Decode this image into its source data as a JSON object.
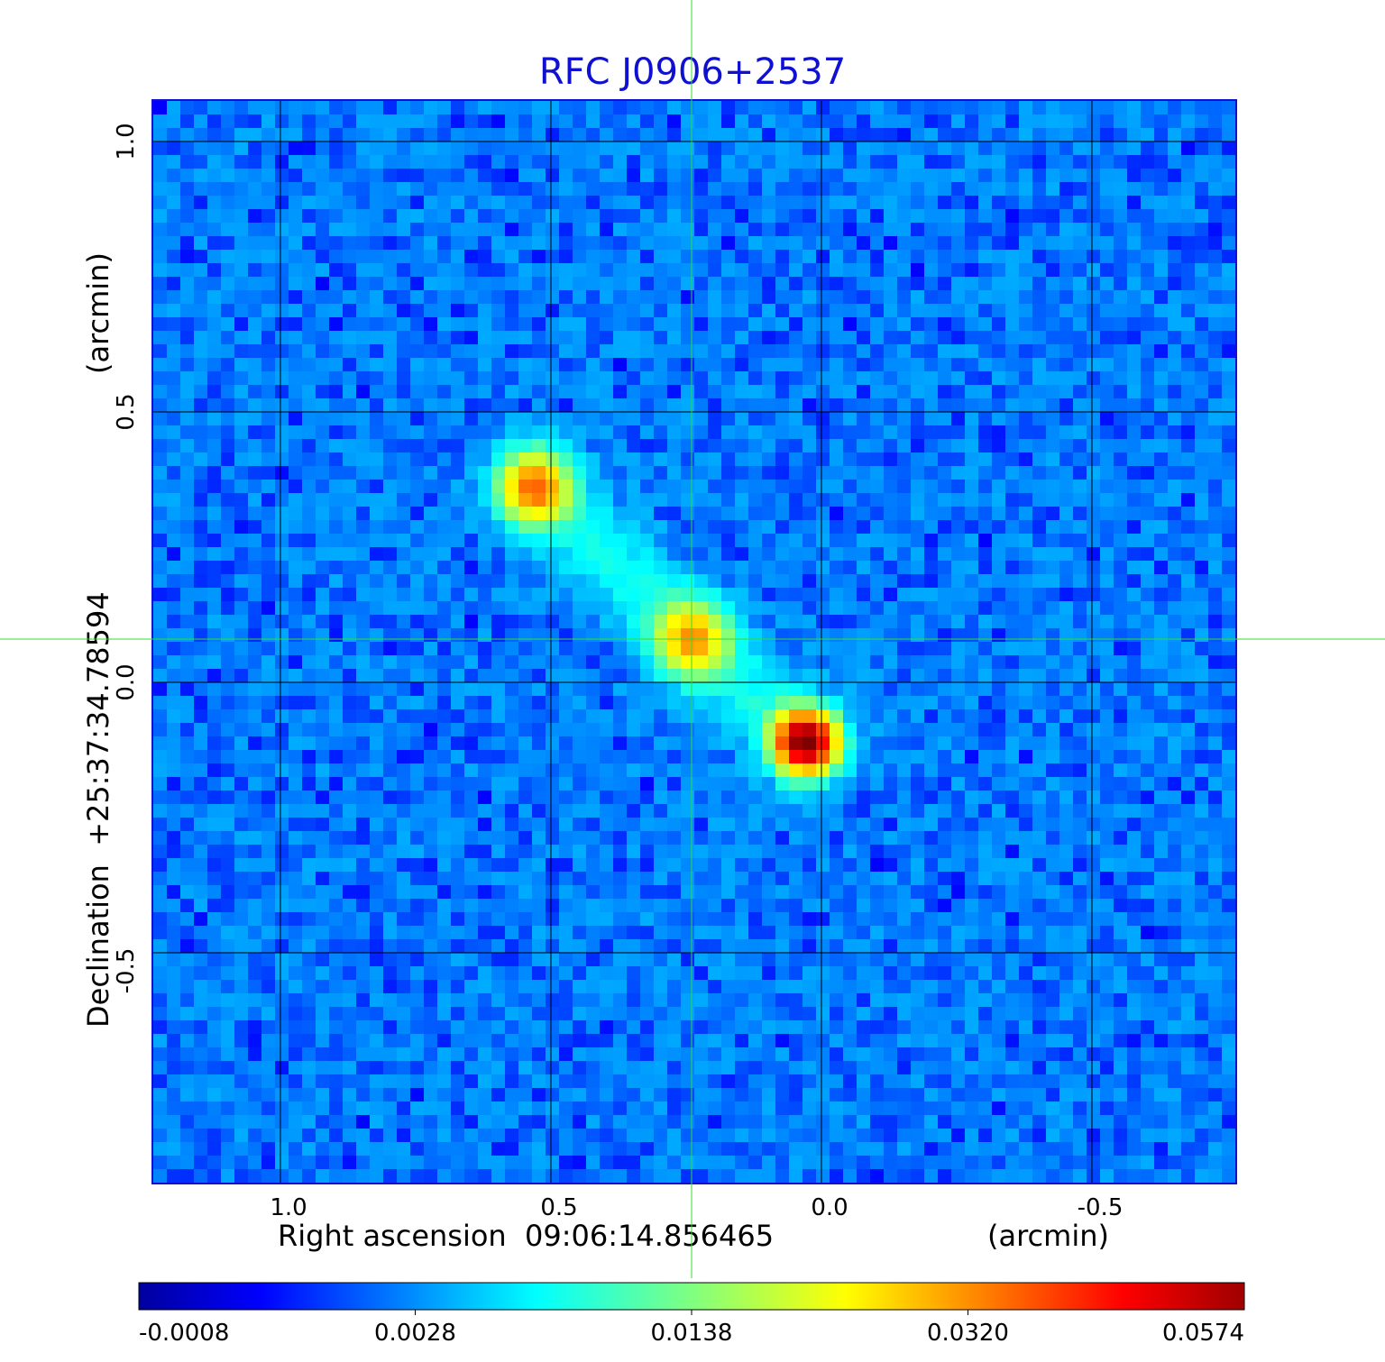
{
  "chart_data": {
    "type": "heatmap",
    "title": "RFC J0906+2537",
    "xlabel": "Right ascension  09:06:14.856465",
    "xlabel_unit": "(arcmin)",
    "ylabel": "Declination  +25:37:34.78594",
    "ylabel_unit": "(arcmin)",
    "x_axis": {
      "reversed": true,
      "range": [
        1.235,
        -0.765
      ],
      "ticks": [
        1.0,
        0.5,
        0.0,
        -0.5
      ],
      "tick_labels": [
        "1.0",
        "0.5",
        "0.0",
        "-0.5"
      ]
    },
    "y_axis": {
      "range": [
        -0.925,
        1.075
      ],
      "ticks": [
        1.0,
        0.5,
        0.0,
        -0.5
      ],
      "tick_labels": [
        "1.0",
        "0.5",
        "0.0",
        "-0.5"
      ]
    },
    "grid": true,
    "crosshair": {
      "x": 0.24,
      "y": 0.08,
      "color": "#33dd33"
    },
    "colormap": "jet",
    "colorbar": {
      "orientation": "horizontal",
      "tick_labels": [
        "-0.0008",
        "0.0028",
        "0.0138",
        "0.0320",
        "0.0574"
      ],
      "range": [
        -0.0008,
        0.0574
      ]
    },
    "components": [
      {
        "x": 0.03,
        "y": -0.11,
        "peak": 0.0574
      },
      {
        "x": 0.24,
        "y": 0.08,
        "peak": 0.019
      },
      {
        "x": 0.53,
        "y": 0.36,
        "peak": 0.027
      }
    ]
  }
}
